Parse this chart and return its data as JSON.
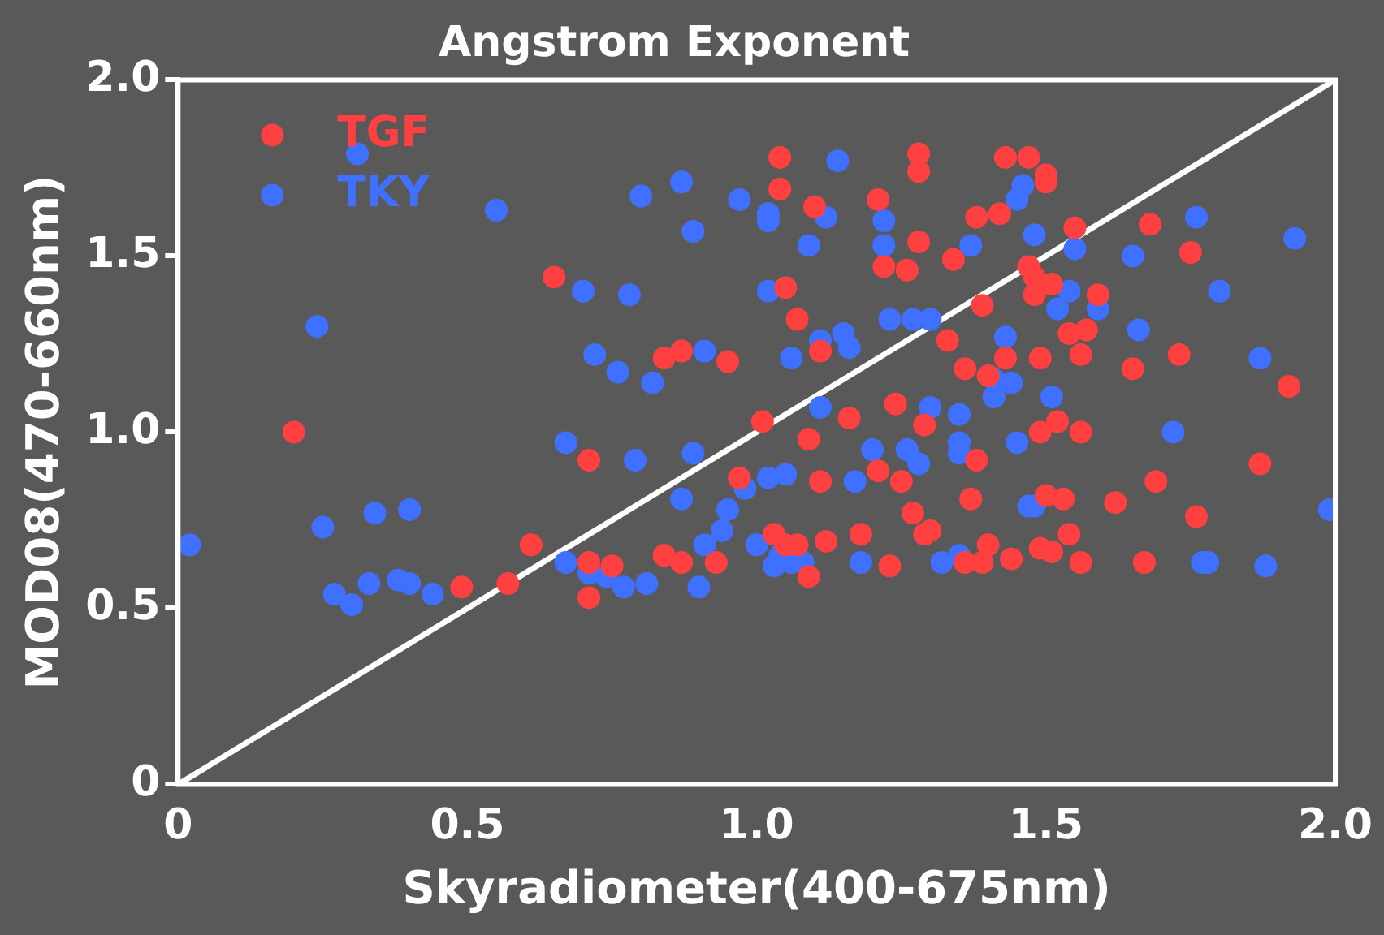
{
  "chart_data": {
    "type": "scatter",
    "title": "Angstrom Exponent",
    "xlabel": "Skyradiometer(400-675nm)",
    "ylabel": "MOD08(470-660nm)",
    "xlim": [
      0,
      2
    ],
    "ylim": [
      0,
      2
    ],
    "xticks": [
      {
        "value": 0,
        "label": "0"
      },
      {
        "value": 0.5,
        "label": "0.5"
      },
      {
        "value": 1,
        "label": "1.0"
      },
      {
        "value": 1.5,
        "label": "1.5"
      },
      {
        "value": 2,
        "label": "2.0"
      }
    ],
    "yticks": [
      {
        "value": 0,
        "label": "0"
      },
      {
        "value": 0.5,
        "label": "0.5"
      },
      {
        "value": 1,
        "label": "1.0"
      },
      {
        "value": 1.5,
        "label": "1.5"
      },
      {
        "value": 2,
        "label": "2.0"
      }
    ],
    "grid": false,
    "legend": "top left",
    "series": [
      {
        "name": "TGF",
        "color": "#ff4040",
        "marker": "circle",
        "x": [
          0.2,
          0.49,
          0.57,
          0.61,
          0.65,
          0.71,
          0.71,
          0.71,
          0.75,
          0.84,
          0.87,
          0.87,
          0.84,
          0.95,
          0.93,
          0.97,
          1.01,
          1.03,
          1.04,
          1.04,
          1.05,
          1.07,
          1.05,
          1.07,
          1.09,
          1.09,
          1.1,
          1.11,
          1.11,
          1.12,
          1.16,
          1.18,
          1.21,
          1.21,
          1.22,
          1.23,
          1.24,
          1.25,
          1.26,
          1.27,
          1.28,
          1.28,
          1.28,
          1.29,
          1.29,
          1.3,
          1.33,
          1.34,
          1.36,
          1.36,
          1.38,
          1.38,
          1.39,
          1.37,
          1.39,
          1.4,
          1.4,
          1.42,
          1.43,
          1.43,
          1.44,
          1.47,
          1.47,
          1.48,
          1.48,
          1.49,
          1.49,
          1.49,
          1.5,
          1.5,
          1.51,
          1.52,
          1.53,
          1.5,
          1.51,
          1.54,
          1.55,
          1.54,
          1.56,
          1.56,
          1.57,
          1.56,
          1.59,
          1.62,
          1.65,
          1.67,
          1.68,
          1.69,
          1.73,
          1.75,
          1.76,
          1.87,
          1.92
        ],
        "values": [
          1.0,
          0.56,
          0.57,
          0.68,
          1.44,
          0.63,
          0.92,
          0.53,
          0.62,
          1.21,
          1.23,
          0.63,
          0.65,
          1.2,
          0.63,
          0.87,
          1.03,
          0.71,
          1.78,
          1.69,
          1.41,
          1.32,
          0.68,
          0.68,
          0.98,
          0.59,
          1.64,
          0.86,
          1.23,
          0.69,
          1.04,
          0.71,
          0.89,
          1.66,
          1.47,
          0.62,
          1.08,
          0.86,
          1.46,
          0.77,
          1.79,
          1.74,
          1.54,
          1.02,
          0.71,
          0.72,
          1.26,
          1.49,
          1.18,
          0.63,
          1.61,
          0.92,
          1.36,
          0.81,
          0.63,
          0.68,
          1.16,
          1.62,
          1.21,
          1.78,
          0.64,
          1.78,
          1.47,
          1.44,
          1.39,
          0.67,
          1.0,
          1.21,
          1.71,
          1.73,
          1.42,
          1.03,
          0.81,
          0.82,
          0.66,
          0.71,
          1.58,
          1.28,
          1.22,
          1.0,
          1.29,
          0.63,
          1.39,
          0.8,
          1.18,
          0.63,
          1.59,
          0.86,
          1.22,
          1.51,
          0.76,
          0.91,
          1.13
        ]
      },
      {
        "name": "TKY",
        "color": "#4070ff",
        "marker": "circle",
        "x": [
          0.02,
          0.24,
          0.25,
          0.27,
          0.3,
          0.33,
          0.55,
          0.31,
          0.34,
          0.38,
          0.4,
          0.4,
          0.44,
          0.67,
          0.67,
          0.7,
          0.71,
          0.72,
          0.74,
          0.77,
          0.76,
          0.78,
          0.8,
          0.79,
          0.81,
          0.82,
          0.87,
          0.87,
          0.89,
          0.89,
          0.91,
          0.91,
          0.9,
          0.95,
          0.94,
          0.97,
          0.98,
          1.0,
          1.02,
          1.02,
          1.02,
          1.03,
          1.02,
          1.04,
          1.06,
          1.05,
          1.06,
          1.08,
          1.09,
          1.11,
          1.11,
          1.12,
          1.14,
          1.15,
          1.16,
          1.17,
          1.18,
          1.2,
          1.22,
          1.22,
          1.23,
          1.26,
          1.27,
          1.3,
          1.3,
          1.28,
          1.32,
          1.35,
          1.35,
          1.35,
          1.35,
          1.37,
          1.41,
          1.41,
          1.43,
          1.44,
          1.45,
          1.45,
          1.46,
          1.47,
          1.48,
          1.48,
          1.51,
          1.52,
          1.54,
          1.55,
          1.59,
          1.65,
          1.66,
          1.72,
          1.76,
          1.77,
          1.78,
          1.8,
          1.87,
          1.88,
          1.93,
          1.99
        ],
        "values": [
          0.68,
          1.3,
          0.73,
          0.54,
          0.51,
          0.57,
          1.63,
          1.79,
          0.77,
          0.58,
          0.78,
          0.57,
          0.54,
          0.63,
          0.97,
          1.4,
          0.6,
          1.22,
          0.59,
          0.56,
          1.17,
          1.39,
          1.67,
          0.92,
          0.57,
          1.14,
          0.81,
          1.71,
          0.94,
          1.57,
          1.23,
          0.68,
          0.56,
          0.78,
          0.72,
          1.66,
          0.84,
          0.68,
          1.62,
          0.87,
          1.4,
          0.62,
          1.6,
          0.65,
          1.21,
          0.88,
          0.63,
          0.63,
          1.53,
          1.07,
          1.26,
          1.61,
          1.77,
          1.28,
          1.24,
          0.86,
          0.63,
          0.95,
          1.6,
          1.53,
          1.32,
          0.95,
          1.32,
          1.32,
          1.07,
          0.91,
          0.63,
          0.65,
          0.94,
          1.05,
          0.97,
          1.53,
          1.1,
          1.15,
          1.27,
          1.14,
          0.97,
          1.66,
          1.7,
          0.79,
          1.56,
          0.79,
          1.1,
          1.35,
          1.4,
          1.52,
          1.35,
          1.5,
          1.29,
          1.0,
          1.61,
          0.63,
          0.63,
          1.4,
          1.21,
          0.62,
          1.55,
          0.78
        ]
      },
      {
        "type": "line",
        "color": "#ffffff",
        "marker": "none",
        "x": [
          0,
          2
        ],
        "values": [
          0,
          2
        ]
      }
    ]
  }
}
